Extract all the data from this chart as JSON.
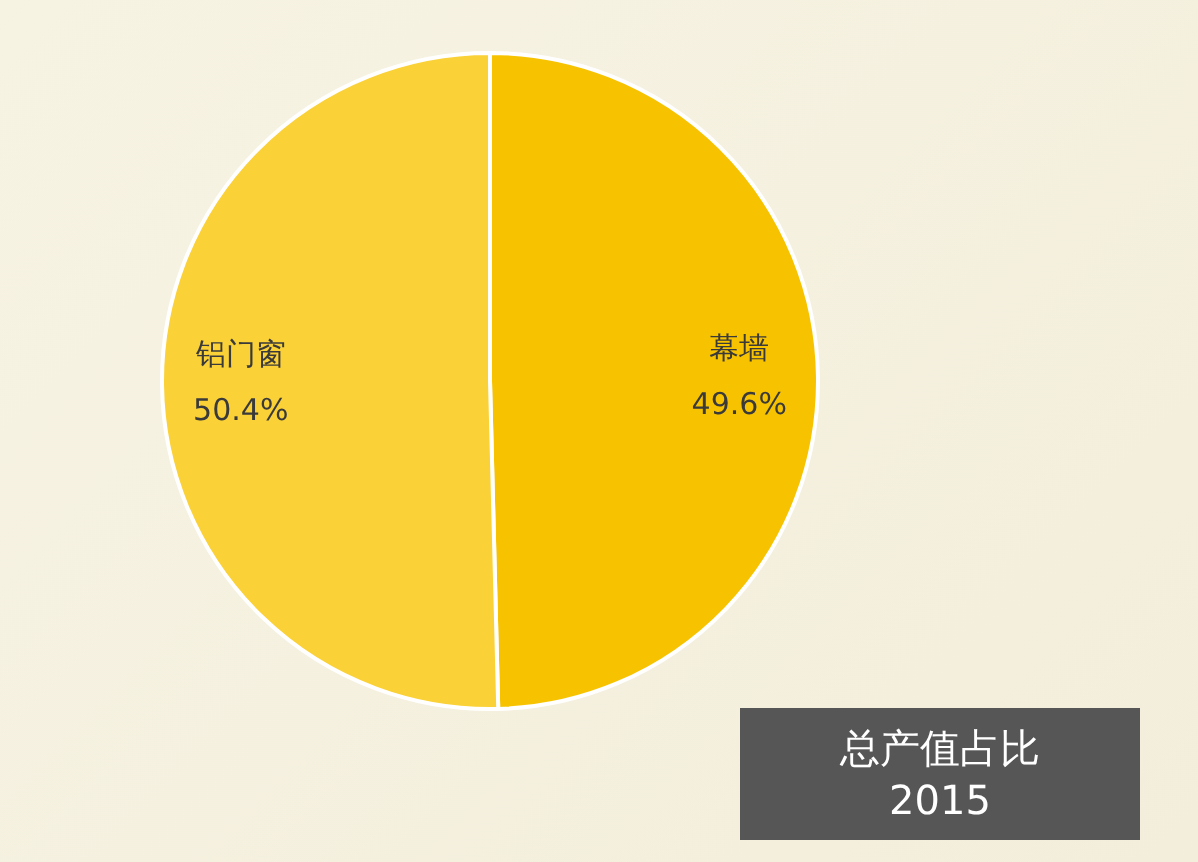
{
  "chart_data": {
    "type": "pie",
    "title": "总产值占比",
    "subtitle": "2015",
    "categories": [
      "幕墙",
      "铝门窗"
    ],
    "values": [
      49.6,
      50.4
    ],
    "colors": [
      "#f7c300",
      "#fad137"
    ],
    "value_labels": [
      "49.6%",
      "50.4%"
    ]
  }
}
